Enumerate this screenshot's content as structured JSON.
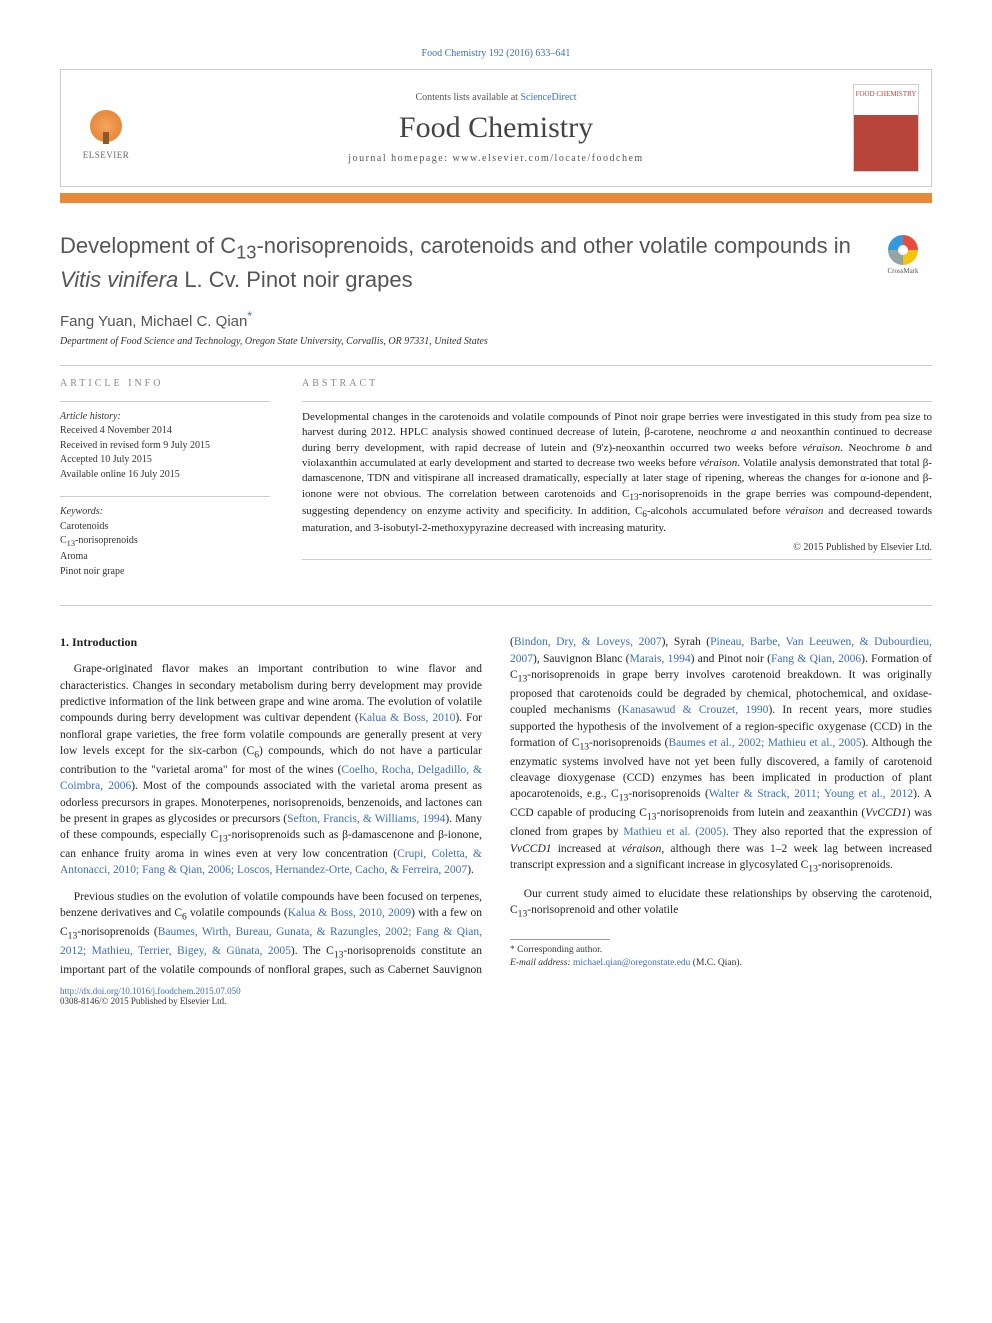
{
  "header": {
    "citation_line": "Food Chemistry 192 (2016) 633–641",
    "contents_prefix": "Contents lists available at ",
    "contents_link": "ScienceDirect",
    "journal_name": "Food Chemistry",
    "homepage": "journal homepage: www.elsevier.com/locate/foodchem",
    "publisher_label": "ELSEVIER",
    "cover_label": "FOOD CHEMISTRY"
  },
  "crossmark": {
    "label": "CrossMark"
  },
  "article": {
    "title_html": "Development of C<sub>13</sub>-norisoprenoids, carotenoids and other volatile compounds in <em>Vitis vinifera</em> L. Cv. Pinot noir grapes",
    "authors_html": "Fang Yuan, Michael C. Qian<span class=\"corr\">*</span>",
    "affiliation": "Department of Food Science and Technology, Oregon State University, Corvallis, OR 97331, United States"
  },
  "info": {
    "label": "ARTICLE INFO",
    "history_heading": "Article history:",
    "history": [
      "Received 4 November 2014",
      "Received in revised form 9 July 2015",
      "Accepted 10 July 2015",
      "Available online 16 July 2015"
    ],
    "keywords_heading": "Keywords:",
    "keywords_html": "Carotenoids<br>C<sub>13</sub>-norisoprenoids<br>Aroma<br>Pinot noir grape"
  },
  "abstract": {
    "label": "ABSTRACT",
    "text_html": "Developmental changes in the carotenoids and volatile compounds of Pinot noir grape berries were investigated in this study from pea size to harvest during 2012. HPLC analysis showed continued decrease of lutein, β-carotene, neochrome <em>a</em> and neoxanthin continued to decrease during berry development, with rapid decrease of lutein and (9'z)-neoxanthin occurred two weeks before <em>véraison</em>. Neochrome <em>b</em> and violaxanthin accumulated at early development and started to decrease two weeks before <em>véraison</em>. Volatile analysis demonstrated that total β-damascenone, TDN and vitispirane all increased dramatically, especially at later stage of ripening, whereas the changes for α-ionone and β-ionone were not obvious. The correlation between carotenoids and C<sub>13</sub>-norisoprenoids in the grape berries was compound-dependent, suggesting dependency on enzyme activity and specificity. In addition, C<sub>6</sub>-alcohols accumulated before <em>véraison</em> and decreased towards maturation, and 3-isobutyl-2-methoxypyrazine decreased with increasing maturity.",
    "copyright": "© 2015 Published by Elsevier Ltd."
  },
  "body": {
    "heading": "1. Introduction",
    "paragraphs_html": [
      "Grape-originated flavor makes an important contribution to wine flavor and characteristics. Changes in secondary metabolism during berry development may provide predictive information of the link between grape and wine aroma. The evolution of volatile compounds during berry development was cultivar dependent (<a href=\"#\">Kalua & Boss, 2010</a>). For nonfloral grape varieties, the free form volatile compounds are generally present at very low levels except for the six-carbon (C<sub>6</sub>) compounds, which do not have a particular contribution to the \"varietal aroma\" for most of the wines (<a href=\"#\">Coelho, Rocha, Delgadillo, & Coimbra, 2006</a>). Most of the compounds associated with the varietal aroma present as odorless precursors in grapes. Monoterpenes, norisoprenoids, benzenoids, and lactones can be present in grapes as glycosides or precursors (<a href=\"#\">Sefton, Francis, & Williams, 1994</a>). Many of these compounds, especially C<sub>13</sub>-norisoprenoids such as β-damascenone and β-ionone, can enhance fruity aroma in wines even at very low concentration (<a href=\"#\">Crupi, Coletta, & Antonacci, 2010; Fang & Qian, 2006; Loscos, Hernandez-Orte, Cacho, & Ferreira, 2007</a>).",
      "Previous studies on the evolution of volatile compounds have been focused on terpenes, benzene derivatives and C<sub>6</sub> volatile compounds (<a href=\"#\">Kalua & Boss, 2010, 2009</a>) with a few on C<sub>13</sub>-norisoprenoids (<a href=\"#\">Baumes, Wirth, Bureau, Gunata, & Razungles, 2002; Fang & Qian, 2012; Mathieu, Terrier, Bigey, & Günata, 2005</a>). The C<sub>13</sub>-norisoprenoids constitute an important part of the volatile compounds of nonfloral grapes, such as Cabernet Sauvignon (<a href=\"#\">Bindon, Dry, & Loveys, 2007</a>), Syrah (<a href=\"#\">Pineau, Barbe, Van Leeuwen, & Dubourdieu, 2007</a>), Sauvignon Blanc (<a href=\"#\">Marais, 1994</a>) and Pinot noir (<a href=\"#\">Fang & Qian, 2006</a>). Formation of C<sub>13</sub>-norisoprenoids in grape berry involves carotenoid breakdown. It was originally proposed that carotenoids could be degraded by chemical, photochemical, and oxidase-coupled mechanisms (<a href=\"#\">Kanasawud & Crouzet, 1990</a>). In recent years, more studies supported the hypothesis of the involvement of a region-specific oxygenase (CCD) in the formation of C<sub>13</sub>-norisoprenoids (<a href=\"#\">Baumes et al., 2002; Mathieu et al., 2005</a>). Although the enzymatic systems involved have not yet been fully discovered, a family of carotenoid cleavage dioxygenase (CCD) enzymes has been implicated in production of plant apocarotenoids, e.g., C<sub>13</sub>-norisoprenoids (<a href=\"#\">Walter & Strack, 2011; Young et al., 2012</a>). A CCD capable of producing C<sub>13</sub>-norisoprenoids from lutein and zeaxanthin (<em>VvCCD1</em>) was cloned from grapes by <a href=\"#\">Mathieu et al. (2005)</a>. They also reported that the expression of <em>VvCCD1</em> increased at <em>véraison</em>, although there was 1–2 week lag between increased transcript expression and a significant increase in glycosylated C<sub>13</sub>-norisoprenoids.",
      "Our current study aimed to elucidate these relationships by observing the carotenoid, C<sub>13</sub>-norisoprenoid and other volatile"
    ]
  },
  "footnotes": {
    "corr": "* Corresponding author.",
    "email_label": "E-mail address:",
    "email": "michael.qian@oregonstate.edu",
    "email_suffix": "(M.C. Qian)."
  },
  "footer": {
    "doi": "http://dx.doi.org/10.1016/j.foodchem.2015.07.050",
    "issn": "0308-8146/© 2015 Published by Elsevier Ltd."
  },
  "colors": {
    "link": "#3b6fb6",
    "orange_bar": "#e8893a",
    "gray_text": "#555555",
    "border": "#cccccc"
  }
}
